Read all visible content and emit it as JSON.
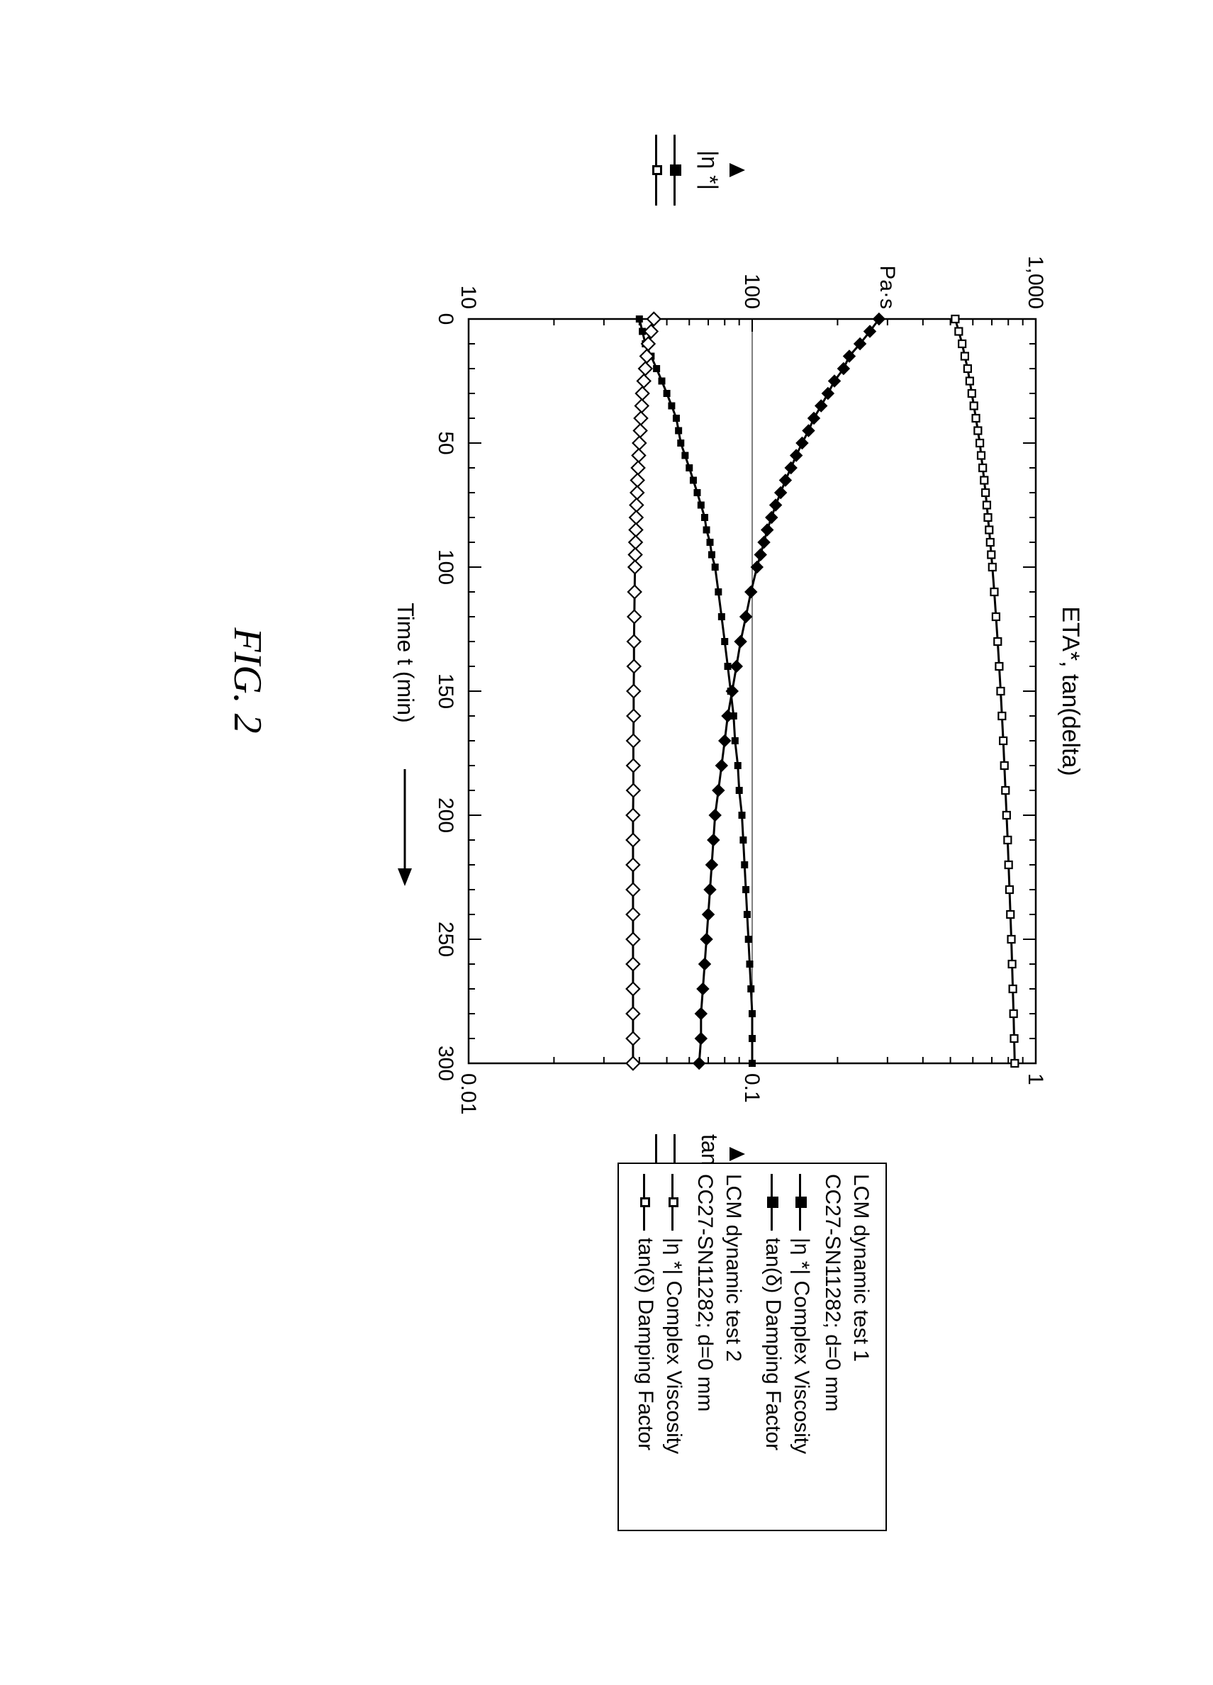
{
  "figure_caption": "FIG. 2",
  "chart": {
    "type": "line",
    "title": "ETA*, tan(delta)",
    "title_fontsize": 34,
    "background_color": "#ffffff",
    "axis_color": "#000000",
    "grid_color": "#e0e0e0",
    "x": {
      "label": "Time t (min)",
      "label_fontsize": 32,
      "lim": [
        0,
        300
      ],
      "ticks": [
        0,
        50,
        100,
        150,
        200,
        250,
        300
      ],
      "scale": "linear",
      "minor_step": 10
    },
    "y_left": {
      "label": "|η *|",
      "unit": "Pa·s",
      "scale": "log",
      "lim": [
        10,
        1000
      ],
      "ticks": [
        10,
        100,
        1000
      ]
    },
    "y_right": {
      "label": "tan(δ)",
      "scale": "log",
      "lim": [
        0.01,
        1
      ],
      "ticks": [
        0.01,
        0.1,
        1
      ]
    },
    "series": [
      {
        "id": "eta1",
        "group_title": "LCM dynamic test 1",
        "group_sub": "CC27-SN11282; d=0 mm",
        "legend": "|η *|   Complex Viscosity",
        "axis": "left",
        "color": "#000000",
        "marker": "square-filled",
        "marker_size": 10,
        "line_width": 3,
        "x": [
          0,
          5,
          10,
          15,
          20,
          25,
          30,
          35,
          40,
          45,
          50,
          55,
          60,
          65,
          70,
          75,
          80,
          85,
          90,
          95,
          100,
          110,
          120,
          130,
          140,
          150,
          160,
          170,
          180,
          190,
          200,
          210,
          220,
          230,
          240,
          250,
          260,
          270,
          280,
          290,
          300
        ],
        "y": [
          40,
          41,
          42,
          44,
          46,
          48,
          50,
          52,
          54,
          55,
          56,
          58,
          60,
          62,
          64,
          66,
          68,
          69,
          71,
          72,
          74,
          76,
          78,
          80,
          82,
          84,
          86,
          87,
          89,
          90,
          92,
          93,
          94,
          95,
          96,
          97,
          98,
          99,
          100,
          100,
          100
        ]
      },
      {
        "id": "tan1",
        "group_title": "LCM dynamic test 1",
        "group_sub": "CC27-SN11282; d=0 mm",
        "legend": "tan(δ)  Damping Factor",
        "axis": "right",
        "color": "#000000",
        "marker": "diamond-filled",
        "marker_size": 12,
        "line_width": 3,
        "x": [
          0,
          5,
          10,
          15,
          20,
          25,
          30,
          35,
          40,
          45,
          50,
          55,
          60,
          65,
          70,
          75,
          80,
          85,
          90,
          95,
          100,
          110,
          120,
          130,
          140,
          150,
          160,
          170,
          180,
          190,
          200,
          210,
          220,
          230,
          240,
          250,
          260,
          270,
          280,
          290,
          300
        ],
        "y": [
          0.28,
          0.26,
          0.24,
          0.22,
          0.21,
          0.195,
          0.185,
          0.175,
          0.165,
          0.158,
          0.15,
          0.143,
          0.137,
          0.131,
          0.126,
          0.121,
          0.117,
          0.113,
          0.11,
          0.107,
          0.104,
          0.099,
          0.095,
          0.091,
          0.088,
          0.085,
          0.082,
          0.08,
          0.078,
          0.076,
          0.074,
          0.073,
          0.072,
          0.071,
          0.07,
          0.069,
          0.068,
          0.067,
          0.066,
          0.066,
          0.065
        ]
      },
      {
        "id": "eta2",
        "group_title": "LCM dynamic test 2",
        "group_sub": "CC27-SN11282; d=0 mm",
        "legend": "|η *|   Complex Viscosity",
        "axis": "left",
        "color": "#000000",
        "marker": "square-open",
        "marker_size": 10,
        "line_width": 3,
        "x": [
          0,
          5,
          10,
          15,
          20,
          25,
          30,
          35,
          40,
          45,
          50,
          55,
          60,
          65,
          70,
          75,
          80,
          85,
          90,
          95,
          100,
          110,
          120,
          130,
          140,
          150,
          160,
          170,
          180,
          190,
          200,
          210,
          220,
          230,
          240,
          250,
          260,
          270,
          280,
          290,
          300
        ],
        "y": [
          520,
          535,
          550,
          562,
          575,
          585,
          595,
          605,
          615,
          625,
          635,
          642,
          650,
          658,
          665,
          672,
          678,
          685,
          691,
          697,
          703,
          714,
          724,
          734,
          743,
          752,
          760,
          768,
          775,
          782,
          789,
          796,
          802,
          808,
          814,
          820,
          825,
          830,
          835,
          839,
          843
        ]
      },
      {
        "id": "tan2",
        "group_title": "LCM dynamic test 2",
        "group_sub": "CC27-SN11282; d=0 mm",
        "legend": "tan(δ)  Damping Factor",
        "axis": "right",
        "color": "#000000",
        "marker": "diamond-open",
        "marker_size": 12,
        "line_width": 3,
        "x": [
          0,
          5,
          10,
          15,
          20,
          25,
          30,
          35,
          40,
          45,
          50,
          55,
          60,
          65,
          70,
          75,
          80,
          85,
          90,
          95,
          100,
          110,
          120,
          130,
          140,
          150,
          160,
          170,
          180,
          190,
          200,
          210,
          220,
          230,
          240,
          250,
          260,
          270,
          280,
          290,
          300
        ],
        "y": [
          0.045,
          0.044,
          0.043,
          0.0425,
          0.042,
          0.0415,
          0.041,
          0.0408,
          0.0405,
          0.0403,
          0.04,
          0.0398,
          0.0396,
          0.0394,
          0.0393,
          0.0391,
          0.039,
          0.0389,
          0.0388,
          0.0387,
          0.0386,
          0.0385,
          0.0384,
          0.0383,
          0.0383,
          0.0382,
          0.0382,
          0.0381,
          0.0381,
          0.0381,
          0.038,
          0.038,
          0.038,
          0.038,
          0.038,
          0.038,
          0.038,
          0.038,
          0.038,
          0.038,
          0.038
        ]
      }
    ]
  },
  "legend_box": {
    "groups": [
      {
        "title": "LCM dynamic test 1",
        "sub": "CC27-SN11282; d=0 mm",
        "rows": [
          {
            "marker": "square-filled",
            "text": "|η *|   Complex Viscosity"
          },
          {
            "marker": "diamond-filled",
            "text": "tan(δ)  Damping Factor"
          }
        ]
      },
      {
        "title": "LCM dynamic test 2",
        "sub": "CC27-SN11282; d=0 mm",
        "rows": [
          {
            "marker": "square-open",
            "text": "|η *|   Complex Viscosity"
          },
          {
            "marker": "diamond-open",
            "text": "tan(δ)  Damping Factor"
          }
        ]
      }
    ]
  },
  "outer_left": {
    "label": "|η *|",
    "markers": [
      "square-filled",
      "square-open"
    ]
  },
  "outer_right": {
    "label": "tan(δ)",
    "markers": [
      "diamond-filled",
      "diamond-open"
    ]
  }
}
